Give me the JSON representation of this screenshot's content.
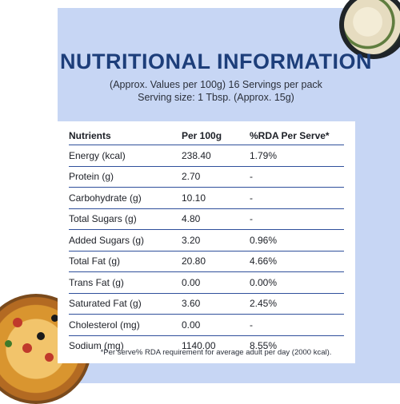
{
  "title": "NUTRITIONAL INFORMATION",
  "subtitle_line1": "(Approx. Values per 100g) 16 Servings per pack",
  "subtitle_line2": "Serving size: 1 Tbsp. (Approx. 15g)",
  "table": {
    "headers": [
      "Nutrients",
      "Per 100g",
      "%RDA Per Serve*"
    ],
    "rows": [
      [
        "Energy (kcal)",
        "238.40",
        "1.79%"
      ],
      [
        "Protein (g)",
        "2.70",
        "-"
      ],
      [
        "Carbohydrate (g)",
        "10.10",
        "-"
      ],
      [
        "Total Sugars (g)",
        "4.80",
        "-"
      ],
      [
        "Added Sugars (g)",
        "3.20",
        "0.96%"
      ],
      [
        "Total Fat (g)",
        "20.80",
        "4.66%"
      ],
      [
        "Trans Fat (g)",
        "0.00",
        "0.00%"
      ],
      [
        "Saturated Fat (g)",
        "3.60",
        "2.45%"
      ],
      [
        "Cholesterol (mg)",
        "0.00",
        "-"
      ],
      [
        "Sodium (mg)",
        "1140.00",
        "8.55%"
      ]
    ]
  },
  "footnote": "*Per serve% RDA requirement for average adult per day (2000 kcal).",
  "colors": {
    "background_panel": "#c7d6f4",
    "title": "#1d3e7a",
    "row_divider": "#2f4f9b"
  },
  "images": [
    "pasta-bowl-photo",
    "pizza-photo"
  ]
}
